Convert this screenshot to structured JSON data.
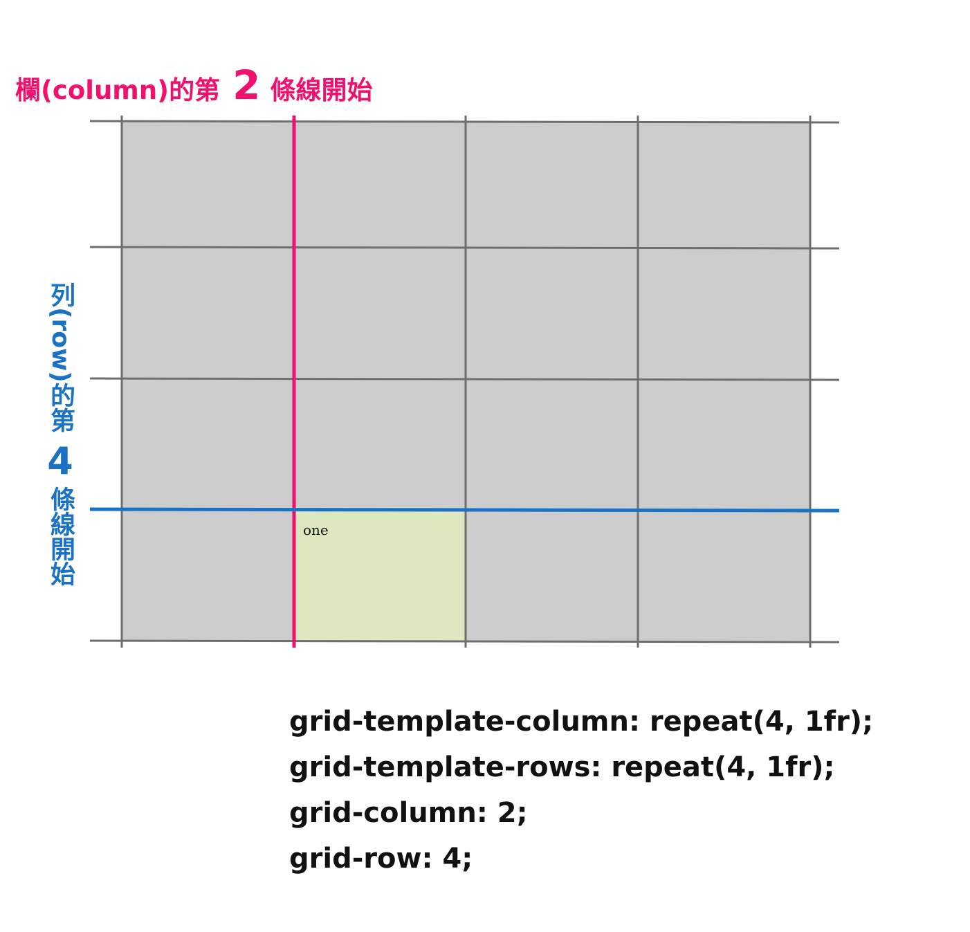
{
  "column_label": {
    "before": "欄(column)的第",
    "number": "2",
    "after": "條線開始",
    "color": "#f0116e"
  },
  "row_label": {
    "before": "列(row)的第",
    "number": "4",
    "after": "條線開始",
    "color": "#1a72c4"
  },
  "grid": {
    "columns": 4,
    "rows": 4,
    "cell_color": "#cccccc",
    "line_color": "#6e6e6e",
    "item_color": "#dee8c0"
  },
  "item": {
    "label": "one",
    "grid_column": 2,
    "grid_row": 4
  },
  "code_lines": [
    "grid-template-column: repeat(4, 1fr);",
    "grid-template-rows: repeat(4, 1fr);",
    "grid-column: 2;",
    "grid-row: 4;"
  ]
}
